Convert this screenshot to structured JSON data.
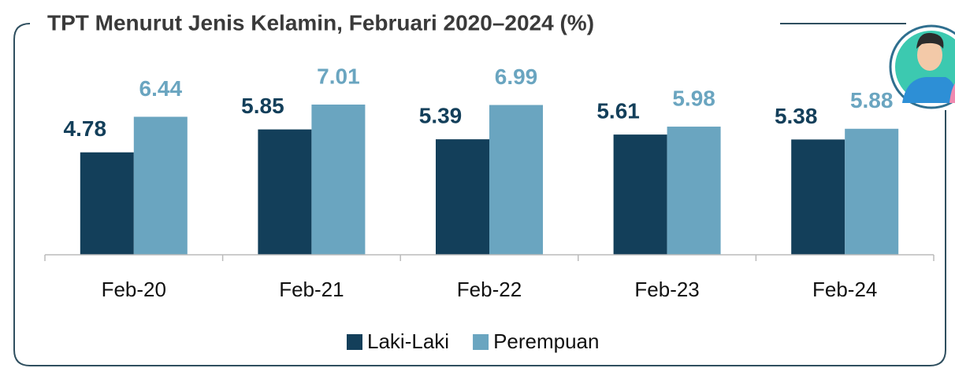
{
  "chart_data": {
    "type": "bar",
    "title": "TPT Menurut Jenis Kelamin, Februari 2020–2024  (%)",
    "categories": [
      "Feb-20",
      "Feb-21",
      "Feb-22",
      "Feb-23",
      "Feb-24"
    ],
    "series": [
      {
        "name": "Laki-Laki",
        "color": "#133f5a",
        "values": [
          4.78,
          5.85,
          5.39,
          5.61,
          5.38
        ]
      },
      {
        "name": "Perempuan",
        "color": "#6aa5c0",
        "values": [
          6.44,
          7.01,
          6.99,
          5.98,
          5.88
        ]
      }
    ],
    "ylim": [
      0,
      8
    ],
    "legend": "bottom"
  }
}
